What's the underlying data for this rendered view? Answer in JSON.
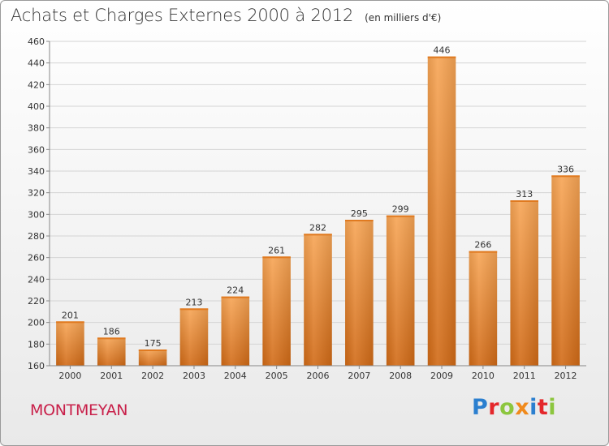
{
  "header": {
    "title": "Achats et Charges Externes 2000 à 2012",
    "unit": "(en milliers d'€)"
  },
  "footer": {
    "city": "MONTMEYAN",
    "logo": {
      "letters": [
        "P",
        "r",
        "o",
        "x",
        "i",
        "t",
        "i"
      ],
      "colors": [
        "#2b7fcf",
        "#e4272b",
        "#8cc63e",
        "#f08a1c",
        "#2b7fcf",
        "#e4272b",
        "#8cc63e"
      ]
    }
  },
  "chart_data": {
    "type": "bar",
    "title": "Achats et Charges Externes 2000 à 2012",
    "subtitle": "(en milliers d'€)",
    "xlabel": "",
    "ylabel": "",
    "categories": [
      "2000",
      "2001",
      "2002",
      "2003",
      "2004",
      "2005",
      "2006",
      "2007",
      "2008",
      "2009",
      "2010",
      "2011",
      "2012"
    ],
    "values": [
      201,
      186,
      175,
      213,
      224,
      261,
      282,
      295,
      299,
      446,
      266,
      313,
      336
    ],
    "ylim": [
      160,
      460
    ],
    "yticks": [
      160,
      180,
      200,
      220,
      240,
      260,
      280,
      300,
      320,
      340,
      360,
      380,
      400,
      420,
      440,
      460
    ],
    "grid": true,
    "legend": "none",
    "bar_color_top": "#f7a555",
    "bar_color_bottom": "#d16a16"
  }
}
